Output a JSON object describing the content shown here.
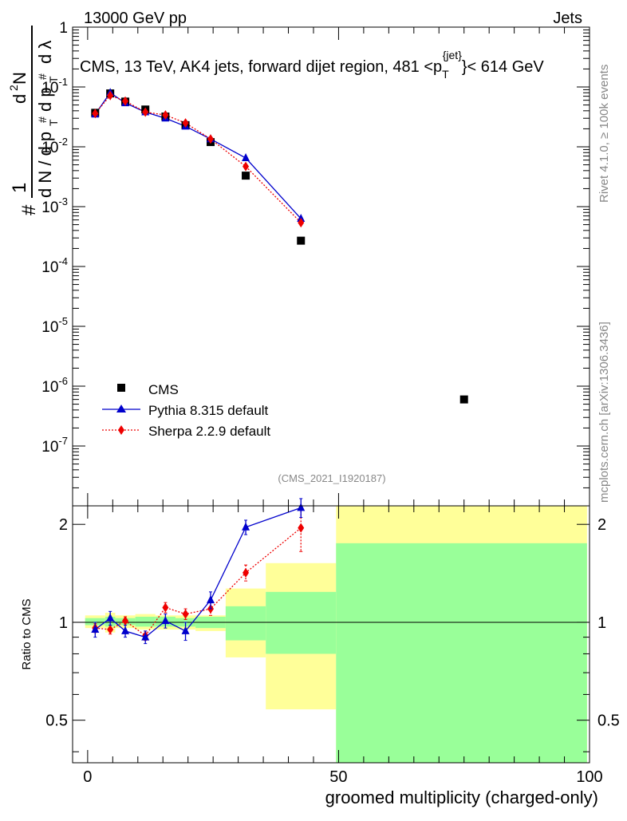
{
  "header": {
    "left": "13000 GeV pp",
    "right": "Jets"
  },
  "side_labels": {
    "rivet": "Rivet 4.1.0, ≥ 100k events",
    "mcplots": "mcplots.cern.ch [arXiv:1306.3436]"
  },
  "watermark": "(CMS_2021_I1920187)",
  "chart_data": {
    "type": "line",
    "title": "CMS, 13 TeV, AK4 jets, forward dijet region, 481 <p_T^{jet}< 614 GeV",
    "title_parts": {
      "main": "CMS, 13 TeV, AK4 jets, forward dijet region, 481 <p",
      "sub": "T",
      "sup": "{jet}",
      "tail": "}< 614 GeV"
    },
    "xlabel": "groomed multiplicity (charged-only)",
    "ylabel_main": "1/(dN/dp_T) d²N/(dp_T dλ)",
    "ylabel_ratio": "Ratio to CMS",
    "xlim": [
      -3,
      100
    ],
    "ylim_main": [
      1e-08,
      1
    ],
    "ylim_ratio": [
      0.37,
      2.28
    ],
    "x_ticks": [
      "0",
      "50",
      "100"
    ],
    "x_tick_values": [
      0,
      50,
      100
    ],
    "y_ticks_main": [
      "1",
      "10^-1",
      "10^-2",
      "10^-3",
      "10^-4",
      "10^-5",
      "10^-6",
      "10^-7"
    ],
    "y_tick_exps": [
      0,
      -1,
      -2,
      -3,
      -4,
      -5,
      -6,
      -7
    ],
    "y_ticks_ratio": [
      "0.5",
      "1",
      "2"
    ],
    "y_tick_ratio_values": [
      0.5,
      1,
      2
    ],
    "legend": [
      "CMS",
      "Pythia 8.315 default",
      "Sherpa 2.2.9 default"
    ],
    "colors": {
      "cms": "#000000",
      "pythia": "#0000cc",
      "sherpa": "#ee0000",
      "band_inner": "#99ff99",
      "band_outer": "#ffff99"
    },
    "cms": {
      "x": [
        1.5,
        4.5,
        7.5,
        11.5,
        15.5,
        19.5,
        24.5,
        31.5,
        42.5,
        75
      ],
      "y": [
        0.037,
        0.078,
        0.057,
        0.042,
        0.032,
        0.023,
        0.012,
        0.0033,
        0.00027,
        6e-07
      ]
    },
    "pythia": {
      "x": [
        1.5,
        4.5,
        7.5,
        11.5,
        15.5,
        19.5,
        24.5,
        31.5,
        42.5
      ],
      "y": [
        0.035,
        0.08,
        0.054,
        0.038,
        0.03,
        0.022,
        0.0135,
        0.0065,
        0.00063
      ],
      "ratio": [
        0.95,
        1.03,
        0.94,
        0.9,
        1.01,
        0.94,
        1.17,
        1.96,
        2.25
      ],
      "ratio_err": [
        0.05,
        0.05,
        0.04,
        0.04,
        0.05,
        0.06,
        0.07,
        0.1,
        0.15
      ]
    },
    "sherpa": {
      "x": [
        1.5,
        4.5,
        7.5,
        11.5,
        15.5,
        19.5,
        24.5,
        31.5,
        42.5
      ],
      "y": [
        0.036,
        0.072,
        0.058,
        0.038,
        0.034,
        0.025,
        0.0135,
        0.0047,
        0.00054
      ],
      "ratio": [
        0.96,
        0.95,
        1.01,
        0.91,
        1.11,
        1.06,
        1.1,
        1.42,
        1.95
      ],
      "ratio_err": [
        0.03,
        0.03,
        0.03,
        0.03,
        0.04,
        0.04,
        0.05,
        0.08,
        0.3
      ]
    },
    "uncertainty_bands": [
      {
        "x0": -0.5,
        "x1": 3.5,
        "inner": [
          0.98,
          1.03
        ],
        "outer": [
          0.96,
          1.05
        ]
      },
      {
        "x0": 3.5,
        "x1": 5.5,
        "inner": [
          0.97,
          1.04
        ],
        "outer": [
          0.93,
          1.07
        ]
      },
      {
        "x0": 5.5,
        "x1": 9.5,
        "inner": [
          0.98,
          1.03
        ],
        "outer": [
          0.96,
          1.05
        ]
      },
      {
        "x0": 9.5,
        "x1": 13.5,
        "inner": [
          0.97,
          1.04
        ],
        "outer": [
          0.95,
          1.06
        ]
      },
      {
        "x0": 13.5,
        "x1": 17.5,
        "inner": [
          0.97,
          1.04
        ],
        "outer": [
          0.95,
          1.05
        ]
      },
      {
        "x0": 17.5,
        "x1": 21.5,
        "inner": [
          0.97,
          1.03
        ],
        "outer": [
          0.95,
          1.05
        ]
      },
      {
        "x0": 21.5,
        "x1": 27.5,
        "inner": [
          0.96,
          1.04
        ],
        "outer": [
          0.94,
          1.05
        ]
      },
      {
        "x0": 27.5,
        "x1": 35.5,
        "inner": [
          0.88,
          1.12
        ],
        "outer": [
          0.78,
          1.27
        ]
      },
      {
        "x0": 35.5,
        "x1": 49.5,
        "inner": [
          0.8,
          1.24
        ],
        "outer": [
          0.54,
          1.52
        ]
      },
      {
        "x0": 49.5,
        "x1": 99.5,
        "inner": [
          0.37,
          1.75
        ],
        "outer": [
          0.37,
          2.28
        ]
      }
    ]
  }
}
